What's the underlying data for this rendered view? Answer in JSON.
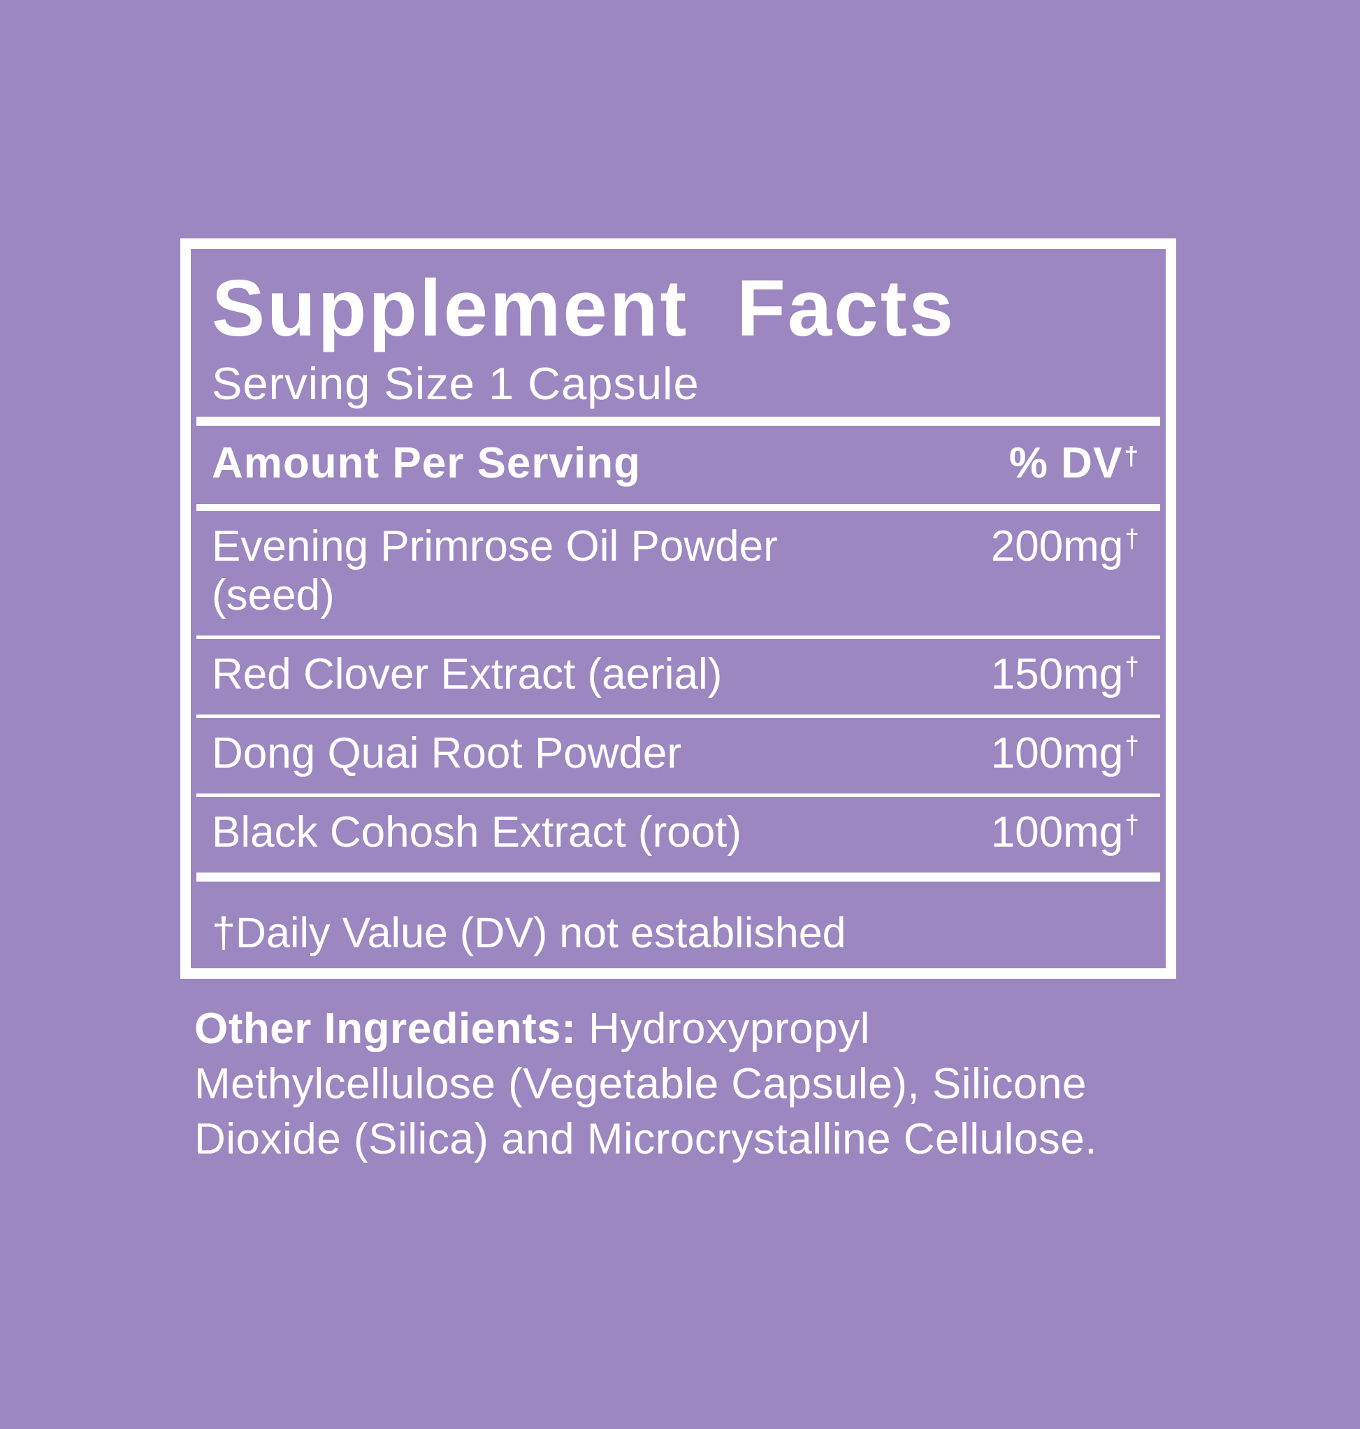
{
  "colors": {
    "background": "#9c87c1",
    "foreground": "#ffffff"
  },
  "panel": {
    "title": "Supplement Facts",
    "serving_size": "Serving Size 1 Capsule",
    "header": {
      "amount_label": "Amount Per Serving",
      "dv_label": "% DV",
      "dv_dagger": "†"
    },
    "rows": [
      {
        "name": "Evening Primrose Oil Powder (seed)",
        "amount": "200mg",
        "dagger": "†"
      },
      {
        "name": "Red Clover Extract (aerial)",
        "amount": "150mg",
        "dagger": "†"
      },
      {
        "name": "Dong Quai Root Powder",
        "amount": "100mg",
        "dagger": "†"
      },
      {
        "name": "Black Cohosh Extract (root)",
        "amount": "100mg",
        "dagger": "†"
      }
    ],
    "footnote": "†Daily Value (DV) not established"
  },
  "other_ingredients": {
    "label": "Other Ingredients:",
    "line1_rest": " Hydroxypropyl",
    "line2": "Methylcellulose (Vegetable Capsule), Silicone",
    "line3": "Dioxide (Silica) and Microcrystalline Cellulose."
  }
}
